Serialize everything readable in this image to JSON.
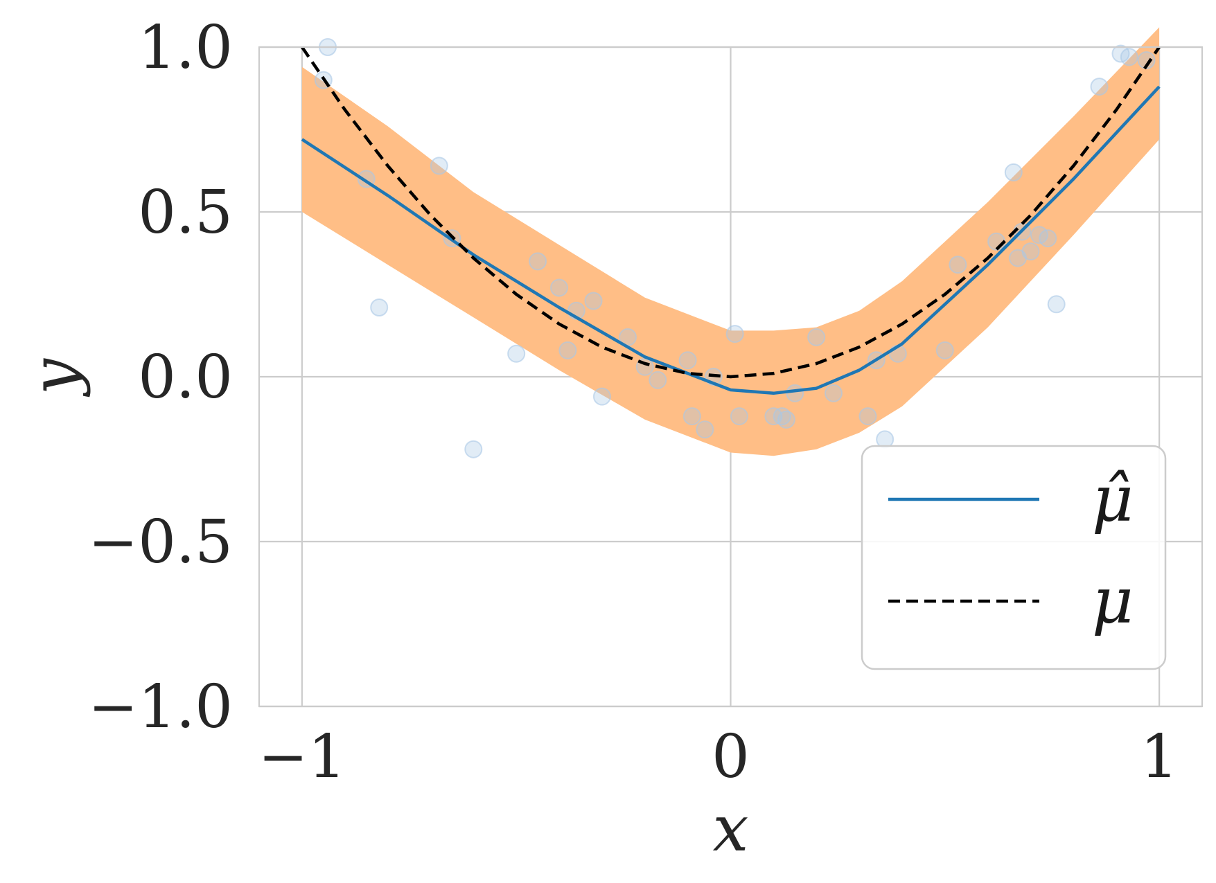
{
  "chart_data": {
    "type": "line",
    "xlabel": "x",
    "ylabel": "y",
    "xlim": [
      -1.1,
      1.1
    ],
    "ylim": [
      -1.0,
      1.0
    ],
    "xticks": [
      -1,
      0,
      1
    ],
    "yticks": [
      -1.0,
      -0.5,
      0.0,
      0.5,
      1.0
    ],
    "xtick_labels": [
      "−1",
      "0",
      "1"
    ],
    "ytick_labels": [
      "−1.0",
      "−0.5",
      "0.0",
      "0.5",
      "1.0"
    ],
    "grid": true,
    "legend_position": "lower-right",
    "colors": {
      "mu_hat": "#1f77b4",
      "mu": "#000000",
      "band": "#ffbe86",
      "scatter": "#aac8e6",
      "grid": "#cccccc"
    },
    "series": [
      {
        "name": "μ̂",
        "style": "solid",
        "x": [
          -1.0,
          -0.8,
          -0.6,
          -0.4,
          -0.2,
          0.0,
          0.1,
          0.2,
          0.3,
          0.4,
          0.6,
          0.8,
          1.0
        ],
        "y": [
          0.72,
          0.55,
          0.37,
          0.21,
          0.06,
          -0.04,
          -0.05,
          -0.035,
          0.02,
          0.1,
          0.34,
          0.6,
          0.88
        ]
      },
      {
        "name": "μ",
        "style": "dashed",
        "x": [
          -1.0,
          -0.9,
          -0.8,
          -0.7,
          -0.6,
          -0.5,
          -0.4,
          -0.3,
          -0.2,
          -0.1,
          0.0,
          0.1,
          0.2,
          0.3,
          0.4,
          0.5,
          0.6,
          0.7,
          0.8,
          0.9,
          1.0
        ],
        "y": [
          1.0,
          0.81,
          0.64,
          0.49,
          0.36,
          0.25,
          0.16,
          0.09,
          0.04,
          0.01,
          0.0,
          0.01,
          0.04,
          0.09,
          0.16,
          0.25,
          0.36,
          0.49,
          0.64,
          0.81,
          1.0
        ]
      }
    ],
    "band": {
      "x": [
        -1.0,
        -0.8,
        -0.6,
        -0.4,
        -0.2,
        0.0,
        0.1,
        0.2,
        0.3,
        0.4,
        0.6,
        0.8,
        1.0
      ],
      "lower": [
        0.5,
        0.34,
        0.18,
        0.02,
        -0.13,
        -0.23,
        -0.24,
        -0.22,
        -0.17,
        -0.09,
        0.15,
        0.43,
        0.72
      ],
      "upper": [
        0.94,
        0.76,
        0.56,
        0.4,
        0.24,
        0.14,
        0.14,
        0.15,
        0.2,
        0.29,
        0.53,
        0.79,
        1.06
      ]
    },
    "scatter": {
      "x": [
        -0.94,
        -0.95,
        -0.85,
        -0.68,
        -0.82,
        -0.65,
        -0.6,
        -0.45,
        -0.5,
        -0.4,
        -0.38,
        -0.36,
        -0.3,
        -0.32,
        -0.24,
        -0.2,
        -0.17,
        -0.1,
        -0.09,
        -0.06,
        -0.04,
        0.01,
        0.02,
        0.1,
        0.12,
        0.13,
        0.15,
        0.2,
        0.24,
        0.32,
        0.34,
        0.36,
        0.39,
        0.5,
        0.53,
        0.62,
        0.66,
        0.68,
        0.67,
        0.7,
        0.72,
        0.74,
        0.76,
        0.86,
        0.91,
        0.93,
        0.97
      ],
      "y": [
        1.0,
        0.9,
        0.6,
        0.64,
        0.21,
        0.42,
        -0.22,
        0.35,
        0.07,
        0.27,
        0.08,
        0.2,
        -0.06,
        0.23,
        0.12,
        0.03,
        -0.01,
        0.05,
        -0.12,
        -0.16,
        0.0,
        0.13,
        -0.12,
        -0.12,
        -0.12,
        -0.13,
        -0.05,
        0.12,
        -0.05,
        -0.12,
        0.05,
        -0.19,
        0.07,
        0.08,
        0.34,
        0.41,
        0.62,
        0.44,
        0.36,
        0.38,
        0.43,
        0.42,
        0.22,
        0.88,
        0.98,
        0.97,
        0.96
      ]
    }
  }
}
